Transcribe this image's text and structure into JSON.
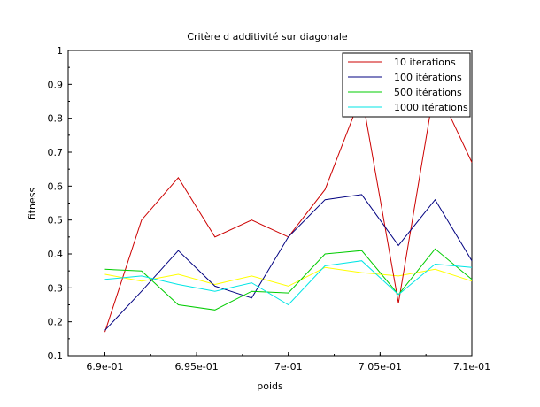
{
  "chart_data": {
    "type": "line",
    "title": "Critère d additivité sur diagonale",
    "xlabel": "poids",
    "ylabel": "fitness",
    "xlim": [
      0.688,
      0.71
    ],
    "ylim": [
      0.1,
      1.0
    ],
    "x_ticks": [
      0.69,
      0.695,
      0.7,
      0.705,
      0.71
    ],
    "x_tick_labels": [
      "6.9e-01",
      "6.95e-01",
      "7e-01",
      "7.05e-01",
      "7.1e-01"
    ],
    "y_ticks": [
      0.1,
      0.2,
      0.3,
      0.4,
      0.5,
      0.6,
      0.7,
      0.8,
      0.9,
      1.0
    ],
    "y_tick_labels": [
      "0.1",
      "0.2",
      "0.3",
      "0.4",
      "0.5",
      "0.6",
      "0.7",
      "0.8",
      "0.9",
      "1"
    ],
    "grid": false,
    "legend_position": "top-right",
    "x": [
      0.69,
      0.692,
      0.694,
      0.696,
      0.698,
      0.7,
      0.702,
      0.704,
      0.706,
      0.708,
      0.71
    ],
    "series": [
      {
        "name": "10 iterations",
        "color": "#cc0000",
        "values": [
          0.17,
          0.5,
          0.625,
          0.45,
          0.5,
          0.45,
          0.59,
          0.87,
          0.255,
          0.9,
          0.67
        ]
      },
      {
        "name": "100 itérations",
        "color": "#000080",
        "values": [
          0.175,
          0.29,
          0.41,
          0.305,
          0.27,
          0.45,
          0.56,
          0.575,
          0.425,
          0.56,
          0.38
        ]
      },
      {
        "name": "500 itérations",
        "color": "#00cc00",
        "values": [
          0.355,
          0.35,
          0.25,
          0.235,
          0.29,
          0.285,
          0.4,
          0.41,
          0.28,
          0.415,
          0.325
        ]
      },
      {
        "name": "1000 itérations",
        "color": "#00e5e5",
        "values": [
          0.325,
          0.335,
          0.31,
          0.29,
          0.315,
          0.25,
          0.365,
          0.38,
          0.28,
          0.37,
          0.36
        ]
      },
      {
        "color": "#ffff00",
        "values": [
          0.34,
          0.32,
          0.34,
          0.31,
          0.335,
          0.305,
          0.36,
          0.345,
          0.335,
          0.355,
          0.32
        ]
      }
    ]
  }
}
